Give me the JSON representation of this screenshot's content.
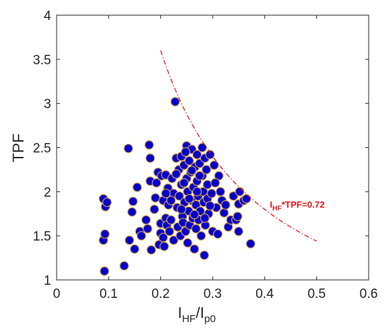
{
  "chart_data": {
    "type": "scatter",
    "xlim": [
      0,
      0.6
    ],
    "ylim": [
      1,
      4
    ],
    "x_ticks": [
      "0",
      "0.1",
      "0.2",
      "0.3",
      "0.4",
      "0.5",
      "0.6"
    ],
    "y_ticks": [
      "1",
      "1.5",
      "2",
      "2.5",
      "3",
      "3.5",
      "4"
    ],
    "xlabel": {
      "main": "I",
      "sub1": "HF",
      "slash": "/I",
      "sub2": "p0"
    },
    "ylabel": "TPF",
    "grid": false,
    "marker_fill": "#0000cc",
    "marker_edge": "#d9a441",
    "curve_color": "#e0191f",
    "series": [
      {
        "points": [
          [
            0.09,
            1.92
          ],
          [
            0.094,
            1.83
          ],
          [
            0.097,
            1.88
          ],
          [
            0.09,
            1.45
          ],
          [
            0.093,
            1.52
          ],
          [
            0.092,
            1.1
          ],
          [
            0.13,
            1.16
          ],
          [
            0.138,
            2.49
          ],
          [
            0.14,
            1.45
          ],
          [
            0.145,
            1.77
          ],
          [
            0.147,
            1.89
          ],
          [
            0.15,
            1.35
          ],
          [
            0.155,
            2.05
          ],
          [
            0.16,
            1.55
          ],
          [
            0.163,
            1.5
          ],
          [
            0.172,
            1.68
          ],
          [
            0.175,
            1.58
          ],
          [
            0.178,
            2.53
          ],
          [
            0.18,
            2.38
          ],
          [
            0.18,
            2.12
          ],
          [
            0.182,
            1.34
          ],
          [
            0.188,
            1.8
          ],
          [
            0.19,
            1.93
          ],
          [
            0.192,
            2.1
          ],
          [
            0.195,
            2.22
          ],
          [
            0.197,
            1.4
          ],
          [
            0.2,
            1.64
          ],
          [
            0.2,
            1.53
          ],
          [
            0.202,
            2.18
          ],
          [
            0.205,
            1.48
          ],
          [
            0.205,
            1.9
          ],
          [
            0.207,
            1.38
          ],
          [
            0.21,
            2.19
          ],
          [
            0.21,
            1.7
          ],
          [
            0.212,
            1.62
          ],
          [
            0.214,
            2.04
          ],
          [
            0.215,
            1.85
          ],
          [
            0.217,
            1.55
          ],
          [
            0.22,
            1.68
          ],
          [
            0.222,
            2.15
          ],
          [
            0.225,
            1.45
          ],
          [
            0.225,
            1.98
          ],
          [
            0.228,
            3.02
          ],
          [
            0.23,
            2.38
          ],
          [
            0.232,
            1.82
          ],
          [
            0.233,
            1.6
          ],
          [
            0.235,
            2.25
          ],
          [
            0.236,
            1.95
          ],
          [
            0.238,
            1.5
          ],
          [
            0.24,
            2.08
          ],
          [
            0.24,
            2.4
          ],
          [
            0.242,
            1.72
          ],
          [
            0.243,
            1.65
          ],
          [
            0.245,
            2.3
          ],
          [
            0.246,
            1.88
          ],
          [
            0.248,
            1.55
          ],
          [
            0.25,
            2.52
          ],
          [
            0.25,
            2.15
          ],
          [
            0.252,
            2.0
          ],
          [
            0.252,
            1.42
          ],
          [
            0.254,
            1.78
          ],
          [
            0.255,
            2.35
          ],
          [
            0.256,
            1.62
          ],
          [
            0.258,
            2.22
          ],
          [
            0.26,
            2.48
          ],
          [
            0.26,
            1.9
          ],
          [
            0.262,
            1.7
          ],
          [
            0.263,
            2.05
          ],
          [
            0.265,
            1.35
          ],
          [
            0.266,
            2.28
          ],
          [
            0.268,
            1.58
          ],
          [
            0.268,
            1.85
          ],
          [
            0.27,
            2.42
          ],
          [
            0.27,
            2.12
          ],
          [
            0.272,
            1.95
          ],
          [
            0.273,
            1.68
          ],
          [
            0.275,
            2.32
          ],
          [
            0.276,
            1.78
          ],
          [
            0.278,
            1.5
          ],
          [
            0.28,
            2.5
          ],
          [
            0.28,
            2.18
          ],
          [
            0.282,
            2.0
          ],
          [
            0.283,
            1.88
          ],
          [
            0.284,
            1.28
          ],
          [
            0.285,
            2.38
          ],
          [
            0.286,
            1.62
          ],
          [
            0.288,
            2.25
          ],
          [
            0.29,
            1.92
          ],
          [
            0.29,
            2.08
          ],
          [
            0.292,
            1.75
          ],
          [
            0.295,
            2.42
          ],
          [
            0.298,
            1.98
          ],
          [
            0.3,
            1.55
          ],
          [
            0.303,
            2.3
          ],
          [
            0.307,
            1.82
          ],
          [
            0.31,
            1.52
          ],
          [
            0.312,
            2.18
          ],
          [
            0.315,
            2.0
          ],
          [
            0.318,
            1.9
          ],
          [
            0.322,
            1.76
          ],
          [
            0.325,
            1.85
          ],
          [
            0.33,
            1.6
          ],
          [
            0.335,
            1.68
          ],
          [
            0.34,
            1.95
          ],
          [
            0.345,
            1.68
          ],
          [
            0.348,
            1.72
          ],
          [
            0.35,
            1.86
          ],
          [
            0.352,
            2.0
          ],
          [
            0.36,
            1.9
          ],
          [
            0.365,
            1.92
          ],
          [
            0.373,
            1.41
          ],
          [
            0.35,
            1.55
          ],
          [
            0.26,
            2.24
          ],
          [
            0.275,
            2.18
          ],
          [
            0.245,
            2.1
          ],
          [
            0.23,
            2.2
          ],
          [
            0.22,
            1.9
          ],
          [
            0.21,
            1.98
          ],
          [
            0.24,
            1.8
          ],
          [
            0.285,
            1.7
          ],
          [
            0.295,
            1.84
          ],
          [
            0.305,
            2.1
          ],
          [
            0.27,
            2.0
          ],
          [
            0.255,
            1.92
          ],
          [
            0.265,
            1.74
          ],
          [
            0.248,
            2.45
          ]
        ]
      }
    ],
    "curve": {
      "product": 0.72,
      "x_from": 0.2,
      "x_to": 0.5
    },
    "annotation": {
      "main": "I",
      "sub": "HF",
      "rest": "*TPF=0.72",
      "x": 0.41,
      "y": 1.82
    }
  }
}
